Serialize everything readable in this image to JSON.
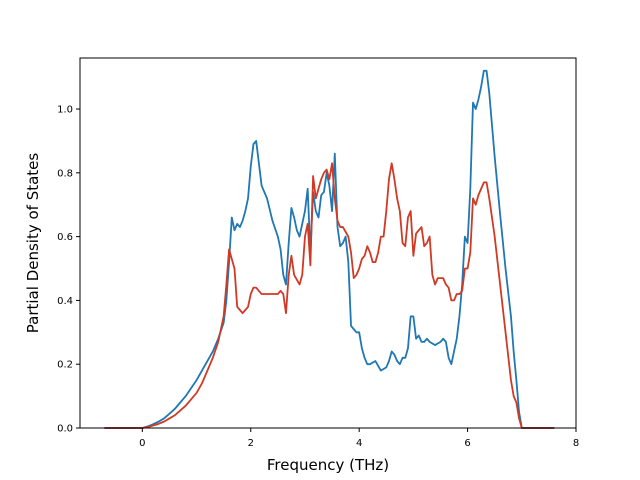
{
  "chart_data": {
    "type": "line",
    "title": "",
    "xlabel": "Frequency (THz)",
    "ylabel": "Partial Density of States",
    "xlim": [
      -1.15,
      8.0
    ],
    "ylim": [
      0.0,
      1.16
    ],
    "xticks": [
      0,
      2,
      4,
      6,
      8
    ],
    "xtick_labels": [
      "0",
      "2",
      "4",
      "6",
      "8"
    ],
    "yticks": [
      0.0,
      0.2,
      0.4,
      0.6,
      0.8,
      1.0
    ],
    "ytick_labels": [
      "0.0",
      "0.2",
      "0.4",
      "0.6",
      "0.8",
      "1.0"
    ],
    "grid": false,
    "series": [
      {
        "color": "#1f77b4",
        "x": [
          -0.7,
          0.0,
          0.1,
          0.2,
          0.3,
          0.4,
          0.5,
          0.6,
          0.7,
          0.8,
          0.9,
          1.0,
          1.1,
          1.2,
          1.3,
          1.4,
          1.5,
          1.55,
          1.6,
          1.65,
          1.7,
          1.75,
          1.8,
          1.85,
          1.9,
          1.95,
          2.0,
          2.05,
          2.1,
          2.15,
          2.2,
          2.3,
          2.4,
          2.5,
          2.55,
          2.6,
          2.65,
          2.7,
          2.75,
          2.8,
          2.85,
          2.9,
          3.0,
          3.05,
          3.1,
          3.15,
          3.2,
          3.25,
          3.3,
          3.35,
          3.4,
          3.45,
          3.5,
          3.55,
          3.6,
          3.65,
          3.7,
          3.75,
          3.8,
          3.85,
          3.9,
          3.95,
          4.0,
          4.05,
          4.1,
          4.15,
          4.2,
          4.3,
          4.4,
          4.5,
          4.55,
          4.6,
          4.65,
          4.7,
          4.75,
          4.8,
          4.85,
          4.9,
          4.95,
          5.0,
          5.05,
          5.1,
          5.15,
          5.2,
          5.25,
          5.3,
          5.4,
          5.5,
          5.55,
          5.6,
          5.65,
          5.7,
          5.75,
          5.8,
          5.85,
          5.9,
          5.95,
          6.0,
          6.05,
          6.1,
          6.15,
          6.2,
          6.25,
          6.3,
          6.35,
          6.4,
          6.5,
          6.6,
          6.7,
          6.8,
          6.85,
          6.9,
          6.95,
          7.0,
          7.6
        ],
        "y": [
          0.0,
          0.0,
          0.005,
          0.012,
          0.02,
          0.03,
          0.045,
          0.06,
          0.08,
          0.1,
          0.125,
          0.15,
          0.18,
          0.21,
          0.24,
          0.28,
          0.33,
          0.4,
          0.52,
          0.66,
          0.62,
          0.64,
          0.63,
          0.65,
          0.68,
          0.72,
          0.82,
          0.89,
          0.9,
          0.83,
          0.76,
          0.72,
          0.65,
          0.6,
          0.56,
          0.48,
          0.45,
          0.58,
          0.69,
          0.66,
          0.62,
          0.6,
          0.68,
          0.75,
          0.55,
          0.74,
          0.68,
          0.66,
          0.73,
          0.74,
          0.8,
          0.76,
          0.68,
          0.86,
          0.63,
          0.57,
          0.58,
          0.6,
          0.52,
          0.32,
          0.31,
          0.3,
          0.3,
          0.25,
          0.22,
          0.2,
          0.2,
          0.21,
          0.18,
          0.19,
          0.21,
          0.24,
          0.23,
          0.21,
          0.2,
          0.22,
          0.22,
          0.25,
          0.35,
          0.35,
          0.28,
          0.29,
          0.27,
          0.27,
          0.28,
          0.27,
          0.26,
          0.27,
          0.28,
          0.27,
          0.22,
          0.2,
          0.24,
          0.28,
          0.35,
          0.45,
          0.6,
          0.58,
          0.75,
          1.02,
          1.0,
          1.03,
          1.07,
          1.12,
          1.12,
          1.05,
          0.85,
          0.67,
          0.5,
          0.35,
          0.24,
          0.15,
          0.05,
          0.0,
          0.0
        ]
      },
      {
        "color": "#d03a25",
        "x": [
          -0.7,
          0.0,
          0.1,
          0.2,
          0.3,
          0.4,
          0.5,
          0.6,
          0.7,
          0.8,
          0.9,
          1.0,
          1.1,
          1.2,
          1.3,
          1.4,
          1.5,
          1.55,
          1.6,
          1.65,
          1.7,
          1.75,
          1.8,
          1.85,
          1.9,
          1.95,
          2.0,
          2.05,
          2.1,
          2.2,
          2.3,
          2.4,
          2.5,
          2.55,
          2.6,
          2.65,
          2.7,
          2.75,
          2.8,
          2.9,
          2.95,
          3.0,
          3.05,
          3.1,
          3.15,
          3.2,
          3.25,
          3.3,
          3.35,
          3.4,
          3.45,
          3.5,
          3.55,
          3.6,
          3.65,
          3.7,
          3.8,
          3.85,
          3.9,
          3.95,
          4.0,
          4.05,
          4.1,
          4.15,
          4.2,
          4.25,
          4.3,
          4.35,
          4.4,
          4.45,
          4.5,
          4.55,
          4.6,
          4.65,
          4.7,
          4.75,
          4.8,
          4.85,
          4.9,
          4.95,
          5.0,
          5.05,
          5.1,
          5.15,
          5.2,
          5.25,
          5.3,
          5.35,
          5.4,
          5.45,
          5.5,
          5.55,
          5.6,
          5.65,
          5.7,
          5.75,
          5.8,
          5.85,
          5.9,
          5.95,
          6.0,
          6.05,
          6.1,
          6.15,
          6.2,
          6.25,
          6.3,
          6.35,
          6.4,
          6.5,
          6.6,
          6.7,
          6.8,
          6.85,
          6.9,
          6.95,
          7.0,
          7.6
        ],
        "y": [
          0.0,
          0.0,
          0.003,
          0.008,
          0.013,
          0.02,
          0.03,
          0.04,
          0.055,
          0.07,
          0.09,
          0.11,
          0.14,
          0.18,
          0.22,
          0.27,
          0.35,
          0.45,
          0.56,
          0.53,
          0.5,
          0.38,
          0.37,
          0.36,
          0.37,
          0.38,
          0.42,
          0.44,
          0.44,
          0.42,
          0.42,
          0.42,
          0.42,
          0.43,
          0.42,
          0.36,
          0.48,
          0.54,
          0.48,
          0.45,
          0.48,
          0.6,
          0.64,
          0.51,
          0.79,
          0.72,
          0.75,
          0.78,
          0.8,
          0.81,
          0.78,
          0.83,
          0.72,
          0.65,
          0.63,
          0.63,
          0.6,
          0.55,
          0.47,
          0.48,
          0.5,
          0.53,
          0.54,
          0.57,
          0.55,
          0.52,
          0.52,
          0.55,
          0.6,
          0.6,
          0.68,
          0.78,
          0.83,
          0.78,
          0.72,
          0.68,
          0.58,
          0.57,
          0.66,
          0.68,
          0.54,
          0.61,
          0.62,
          0.63,
          0.57,
          0.58,
          0.6,
          0.48,
          0.45,
          0.47,
          0.47,
          0.47,
          0.45,
          0.44,
          0.4,
          0.4,
          0.42,
          0.42,
          0.43,
          0.5,
          0.5,
          0.55,
          0.72,
          0.7,
          0.73,
          0.75,
          0.77,
          0.77,
          0.72,
          0.6,
          0.45,
          0.3,
          0.15,
          0.1,
          0.08,
          0.03,
          0.0,
          0.0
        ]
      }
    ]
  }
}
